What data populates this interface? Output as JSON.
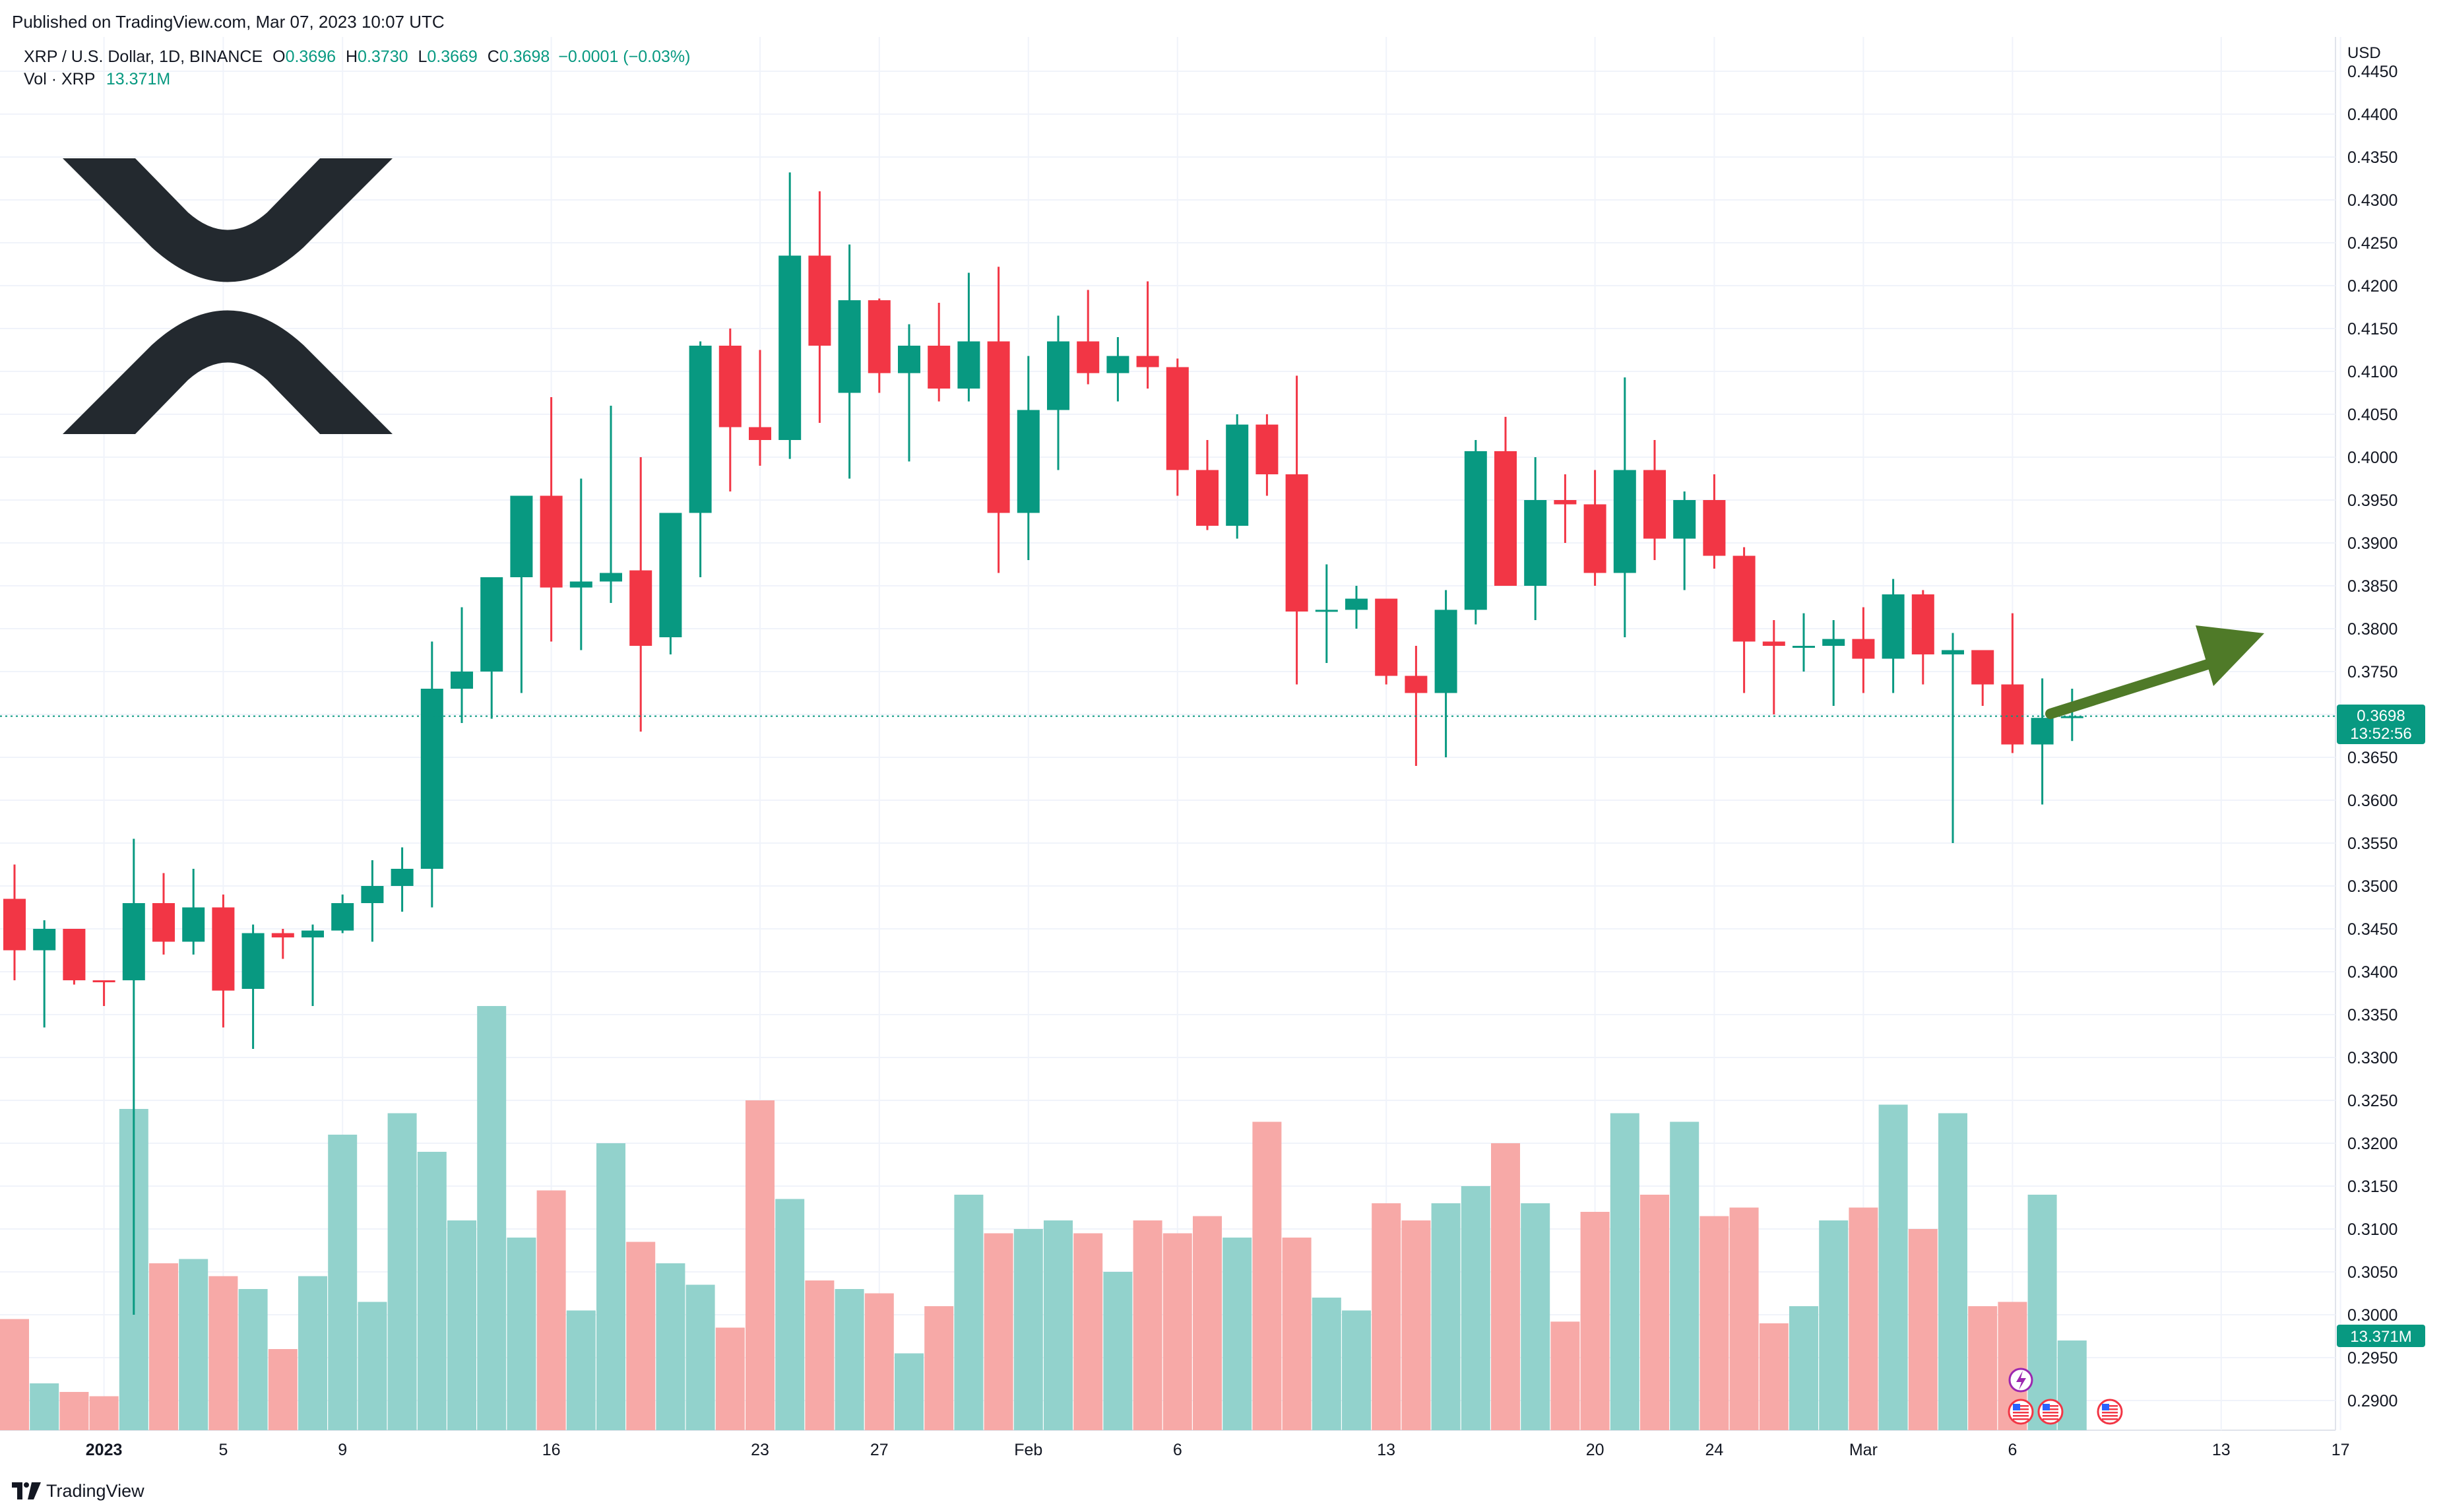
{
  "header": {
    "published": "Published on TradingView.com, Mar 07, 2023 10:07 UTC"
  },
  "legend": {
    "symbol": "XRP / U.S. Dollar, 1D, BINANCE",
    "o_label": "O",
    "o": "0.3696",
    "h_label": "H",
    "h": "0.3730",
    "l_label": "L",
    "l": "0.3669",
    "c_label": "C",
    "c": "0.3698",
    "change": "−0.0001 (−0.03%)",
    "vol_label": "Vol · XRP",
    "vol": "13.371M"
  },
  "price_axis": {
    "currency": "USD",
    "last_price": "0.3698",
    "countdown": "13:52:56",
    "last_volume": "13.371M"
  },
  "footer": {
    "brand": "TradingView"
  },
  "colors": {
    "up": "#089981",
    "down": "#f23645",
    "vol_up": "#92d2cc",
    "vol_down": "#f7a9a7",
    "arrow": "#4f7a28",
    "logo": "#23292f"
  },
  "chart_data": {
    "type": "candlestick",
    "title": "XRP / U.S. Dollar, 1D, BINANCE",
    "ylabel": "USD",
    "ylim": [
      0.288,
      0.445
    ],
    "yticks": [
      "0.4450",
      "0.4400",
      "0.4350",
      "0.4300",
      "0.4250",
      "0.4200",
      "0.4150",
      "0.4100",
      "0.4050",
      "0.4000",
      "0.3950",
      "0.3900",
      "0.3850",
      "0.3800",
      "0.3750",
      "0.3700",
      "0.3650",
      "0.3600",
      "0.3550",
      "0.3500",
      "0.3450",
      "0.3400",
      "0.3350",
      "0.3300",
      "0.3250",
      "0.3200",
      "0.3150",
      "0.3100",
      "0.3050",
      "0.3000",
      "0.2950",
      "0.2900"
    ],
    "x_ticks": [
      {
        "label": "2023",
        "index": 3
      },
      {
        "label": "5",
        "index": 7
      },
      {
        "label": "9",
        "index": 11
      },
      {
        "label": "16",
        "index": 18
      },
      {
        "label": "23",
        "index": 25
      },
      {
        "label": "27",
        "index": 29
      },
      {
        "label": "Feb",
        "index": 34
      },
      {
        "label": "6",
        "index": 39
      },
      {
        "label": "13",
        "index": 46
      },
      {
        "label": "20",
        "index": 53
      },
      {
        "label": "24",
        "index": 57
      },
      {
        "label": "Mar",
        "index": 62
      },
      {
        "label": "6",
        "index": 67
      },
      {
        "label": "13",
        "index": 74
      },
      {
        "label": "17",
        "index": 78
      }
    ],
    "candles": [
      {
        "o": 0.3485,
        "h": 0.3525,
        "l": 0.339,
        "c": 0.3425,
        "v": 0.2995
      },
      {
        "o": 0.3425,
        "h": 0.346,
        "l": 0.3335,
        "c": 0.345,
        "v": 0.292
      },
      {
        "o": 0.345,
        "h": 0.345,
        "l": 0.3385,
        "c": 0.339,
        "v": 0.291
      },
      {
        "o": 0.339,
        "h": 0.339,
        "l": 0.336,
        "c": 0.3388,
        "v": 0.2905
      },
      {
        "o": 0.339,
        "h": 0.3555,
        "l": 0.3,
        "c": 0.348,
        "v": 0.324
      },
      {
        "o": 0.348,
        "h": 0.3515,
        "l": 0.342,
        "c": 0.3435,
        "v": 0.306
      },
      {
        "o": 0.3435,
        "h": 0.352,
        "l": 0.342,
        "c": 0.3475,
        "v": 0.3065
      },
      {
        "o": 0.3475,
        "h": 0.349,
        "l": 0.3335,
        "c": 0.3378,
        "v": 0.3045
      },
      {
        "o": 0.338,
        "h": 0.3455,
        "l": 0.331,
        "c": 0.3445,
        "v": 0.303
      },
      {
        "o": 0.3445,
        "h": 0.345,
        "l": 0.3415,
        "c": 0.344,
        "v": 0.296
      },
      {
        "o": 0.344,
        "h": 0.3455,
        "l": 0.336,
        "c": 0.3448,
        "v": 0.3045
      },
      {
        "o": 0.3448,
        "h": 0.349,
        "l": 0.3445,
        "c": 0.348,
        "v": 0.321
      },
      {
        "o": 0.348,
        "h": 0.353,
        "l": 0.3435,
        "c": 0.35,
        "v": 0.3015
      },
      {
        "o": 0.35,
        "h": 0.3545,
        "l": 0.347,
        "c": 0.352,
        "v": 0.3235
      },
      {
        "o": 0.352,
        "h": 0.3785,
        "l": 0.3475,
        "c": 0.373,
        "v": 0.319
      },
      {
        "o": 0.373,
        "h": 0.3825,
        "l": 0.369,
        "c": 0.375,
        "v": 0.311
      },
      {
        "o": 0.375,
        "h": 0.386,
        "l": 0.3695,
        "c": 0.386,
        "v": 0.336
      },
      {
        "o": 0.386,
        "h": 0.3955,
        "l": 0.3725,
        "c": 0.3955,
        "v": 0.309
      },
      {
        "o": 0.3955,
        "h": 0.407,
        "l": 0.3785,
        "c": 0.3848,
        "v": 0.3145
      },
      {
        "o": 0.3848,
        "h": 0.3975,
        "l": 0.3775,
        "c": 0.3855,
        "v": 0.3005
      },
      {
        "o": 0.3855,
        "h": 0.406,
        "l": 0.383,
        "c": 0.3865,
        "v": 0.32
      },
      {
        "o": 0.3868,
        "h": 0.4,
        "l": 0.368,
        "c": 0.378,
        "v": 0.3085
      },
      {
        "o": 0.379,
        "h": 0.392,
        "l": 0.377,
        "c": 0.3935,
        "v": 0.306
      },
      {
        "o": 0.3935,
        "h": 0.4135,
        "l": 0.386,
        "c": 0.413,
        "v": 0.3035
      },
      {
        "o": 0.413,
        "h": 0.415,
        "l": 0.396,
        "c": 0.4035,
        "v": 0.2985
      },
      {
        "o": 0.4035,
        "h": 0.4125,
        "l": 0.399,
        "c": 0.402,
        "v": 0.325
      },
      {
        "o": 0.402,
        "h": 0.4332,
        "l": 0.3998,
        "c": 0.4235,
        "v": 0.3135
      },
      {
        "o": 0.4235,
        "h": 0.431,
        "l": 0.404,
        "c": 0.413,
        "v": 0.304
      },
      {
        "o": 0.4075,
        "h": 0.4248,
        "l": 0.3975,
        "c": 0.4183,
        "v": 0.303
      },
      {
        "o": 0.4183,
        "h": 0.4185,
        "l": 0.4075,
        "c": 0.4098,
        "v": 0.3025
      },
      {
        "o": 0.4098,
        "h": 0.4155,
        "l": 0.3995,
        "c": 0.413,
        "v": 0.2955
      },
      {
        "o": 0.413,
        "h": 0.418,
        "l": 0.4065,
        "c": 0.408,
        "v": 0.301
      },
      {
        "o": 0.408,
        "h": 0.4215,
        "l": 0.4065,
        "c": 0.4135,
        "v": 0.314
      },
      {
        "o": 0.4135,
        "h": 0.4222,
        "l": 0.3865,
        "c": 0.3935,
        "v": 0.3095
      },
      {
        "o": 0.3935,
        "h": 0.4118,
        "l": 0.388,
        "c": 0.4055,
        "v": 0.31
      },
      {
        "o": 0.4055,
        "h": 0.4165,
        "l": 0.3985,
        "c": 0.4135,
        "v": 0.311
      },
      {
        "o": 0.4135,
        "h": 0.4195,
        "l": 0.4085,
        "c": 0.4098,
        "v": 0.3095
      },
      {
        "o": 0.4098,
        "h": 0.414,
        "l": 0.4065,
        "c": 0.4118,
        "v": 0.305
      },
      {
        "o": 0.4118,
        "h": 0.4205,
        "l": 0.408,
        "c": 0.4105,
        "v": 0.311
      },
      {
        "o": 0.4105,
        "h": 0.4115,
        "l": 0.3955,
        "c": 0.3985,
        "v": 0.3095
      },
      {
        "o": 0.3985,
        "h": 0.402,
        "l": 0.3915,
        "c": 0.392,
        "v": 0.3115
      },
      {
        "o": 0.392,
        "h": 0.405,
        "l": 0.3905,
        "c": 0.4038,
        "v": 0.309
      },
      {
        "o": 0.4038,
        "h": 0.405,
        "l": 0.3955,
        "c": 0.398,
        "v": 0.3225
      },
      {
        "o": 0.398,
        "h": 0.4095,
        "l": 0.3735,
        "c": 0.382,
        "v": 0.309
      },
      {
        "o": 0.382,
        "h": 0.3875,
        "l": 0.376,
        "c": 0.3822,
        "v": 0.302
      },
      {
        "o": 0.3822,
        "h": 0.385,
        "l": 0.38,
        "c": 0.3835,
        "v": 0.3005
      },
      {
        "o": 0.3835,
        "h": 0.3835,
        "l": 0.3735,
        "c": 0.3745,
        "v": 0.313
      },
      {
        "o": 0.3745,
        "h": 0.378,
        "l": 0.364,
        "c": 0.3725,
        "v": 0.311
      },
      {
        "o": 0.3725,
        "h": 0.3845,
        "l": 0.365,
        "c": 0.3822,
        "v": 0.313
      },
      {
        "o": 0.3822,
        "h": 0.402,
        "l": 0.3805,
        "c": 0.4007,
        "v": 0.315
      },
      {
        "o": 0.4007,
        "h": 0.4047,
        "l": 0.386,
        "c": 0.385,
        "v": 0.32
      },
      {
        "o": 0.385,
        "h": 0.4,
        "l": 0.381,
        "c": 0.395,
        "v": 0.313
      },
      {
        "o": 0.395,
        "h": 0.398,
        "l": 0.39,
        "c": 0.3945,
        "v": 0.2992
      },
      {
        "o": 0.3945,
        "h": 0.3985,
        "l": 0.385,
        "c": 0.3865,
        "v": 0.312
      },
      {
        "o": 0.3865,
        "h": 0.4093,
        "l": 0.379,
        "c": 0.3985,
        "v": 0.3235
      },
      {
        "o": 0.3985,
        "h": 0.402,
        "l": 0.388,
        "c": 0.3905,
        "v": 0.314
      },
      {
        "o": 0.3905,
        "h": 0.396,
        "l": 0.3845,
        "c": 0.395,
        "v": 0.3225
      },
      {
        "o": 0.395,
        "h": 0.398,
        "l": 0.387,
        "c": 0.3885,
        "v": 0.3115
      },
      {
        "o": 0.3885,
        "h": 0.3895,
        "l": 0.3725,
        "c": 0.3785,
        "v": 0.3125
      },
      {
        "o": 0.3785,
        "h": 0.381,
        "l": 0.37,
        "c": 0.378,
        "v": 0.299
      },
      {
        "o": 0.378,
        "h": 0.3818,
        "l": 0.375,
        "c": 0.378,
        "v": 0.301
      },
      {
        "o": 0.378,
        "h": 0.381,
        "l": 0.371,
        "c": 0.3788,
        "v": 0.311
      },
      {
        "o": 0.3788,
        "h": 0.3825,
        "l": 0.3725,
        "c": 0.3765,
        "v": 0.3125
      },
      {
        "o": 0.3765,
        "h": 0.3858,
        "l": 0.3725,
        "c": 0.384,
        "v": 0.3245
      },
      {
        "o": 0.384,
        "h": 0.3845,
        "l": 0.3735,
        "c": 0.377,
        "v": 0.31
      },
      {
        "o": 0.377,
        "h": 0.3795,
        "l": 0.355,
        "c": 0.3775,
        "v": 0.3235
      },
      {
        "o": 0.3775,
        "h": 0.3775,
        "l": 0.371,
        "c": 0.3735,
        "v": 0.301
      },
      {
        "o": 0.3735,
        "h": 0.3818,
        "l": 0.3655,
        "c": 0.3665,
        "v": 0.3015
      },
      {
        "o": 0.3665,
        "h": 0.3742,
        "l": 0.3595,
        "c": 0.3696,
        "v": 0.314
      },
      {
        "o": 0.3696,
        "h": 0.373,
        "l": 0.3669,
        "c": 0.3698,
        "v": 0.297
      }
    ],
    "last_price": 0.3698,
    "annotation": "up-right trend arrow"
  }
}
